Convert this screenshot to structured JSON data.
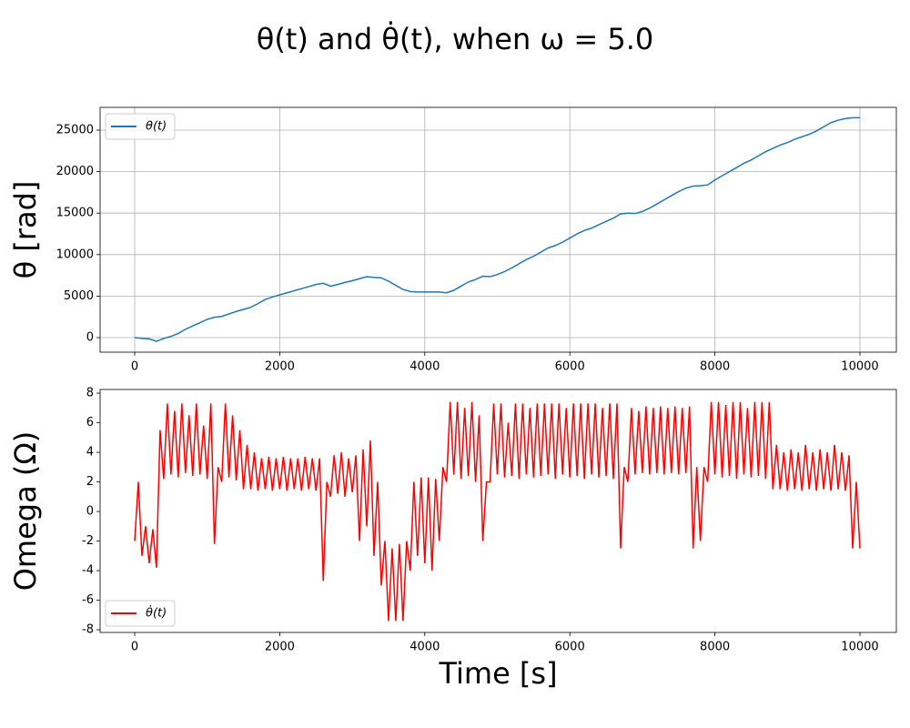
{
  "title": "θ(t) and θ̇(t), when ω = 5.0",
  "chart_data": [
    {
      "type": "line",
      "ylabel": "θ [rad]",
      "grid": true,
      "legend": "upper left",
      "xlim": [
        -477,
        10502
      ],
      "xticks": [
        0,
        2000,
        4000,
        6000,
        8000,
        10000
      ],
      "ylim": [
        -1754,
        27741
      ],
      "yticks": [
        0,
        5000,
        10000,
        15000,
        20000,
        25000
      ],
      "x": [
        0,
        100,
        200,
        300,
        400,
        500,
        600,
        700,
        800,
        900,
        1000,
        1100,
        1200,
        1300,
        1400,
        1500,
        1600,
        1700,
        1800,
        1900,
        2000,
        2100,
        2200,
        2300,
        2400,
        2500,
        2600,
        2700,
        2800,
        2900,
        3000,
        3100,
        3200,
        3300,
        3400,
        3500,
        3600,
        3700,
        3800,
        3900,
        4000,
        4100,
        4200,
        4300,
        4400,
        4500,
        4600,
        4700,
        4800,
        4900,
        5000,
        5100,
        5200,
        5300,
        5400,
        5500,
        5600,
        5700,
        5800,
        5900,
        6000,
        6100,
        6200,
        6300,
        6400,
        6500,
        6600,
        6700,
        6800,
        6900,
        7000,
        7100,
        7200,
        7300,
        7400,
        7500,
        7600,
        7700,
        7800,
        7900,
        8000,
        8100,
        8200,
        8300,
        8400,
        8500,
        8600,
        8700,
        8800,
        8900,
        9000,
        9100,
        9200,
        9300,
        9400,
        9500,
        9600,
        9700,
        9800,
        9900,
        10000
      ],
      "series": [
        {
          "name": "θ(t)",
          "color": "#1f77b4",
          "values": [
            0,
            -100,
            -150,
            -450,
            -100,
            150,
            500,
            1000,
            1400,
            1800,
            2200,
            2450,
            2550,
            2850,
            3150,
            3400,
            3650,
            4100,
            4600,
            4900,
            5150,
            5400,
            5650,
            5900,
            6150,
            6400,
            6550,
            6200,
            6400,
            6650,
            6850,
            7100,
            7350,
            7250,
            7200,
            6800,
            6300,
            5800,
            5550,
            5500,
            5500,
            5500,
            5500,
            5400,
            5700,
            6200,
            6700,
            7000,
            7400,
            7350,
            7600,
            7950,
            8400,
            8900,
            9400,
            9800,
            10300,
            10800,
            11100,
            11500,
            12000,
            12500,
            12900,
            13200,
            13600,
            14000,
            14400,
            14900,
            15000,
            14950,
            15200,
            15600,
            16100,
            16600,
            17100,
            17600,
            18000,
            18250,
            18300,
            18400,
            19000,
            19500,
            20000,
            20500,
            21000,
            21400,
            21900,
            22400,
            22800,
            23200,
            23500,
            23900,
            24200,
            24500,
            24900,
            25400,
            25900,
            26200,
            26400,
            26500,
            26500
          ]
        }
      ]
    },
    {
      "type": "line",
      "ylabel": "Omega (Ω)",
      "xlabel": "Time [s]",
      "grid": false,
      "legend": "lower left",
      "xlim": [
        -477,
        10502
      ],
      "xticks": [
        0,
        2000,
        4000,
        6000,
        8000,
        10000
      ],
      "ylim": [
        -8.18,
        8.25
      ],
      "yticks": [
        -8,
        -6,
        -4,
        -2,
        0,
        2,
        4,
        6,
        8
      ],
      "x": [
        0,
        50,
        100,
        150,
        200,
        250,
        300,
        350,
        400,
        450,
        500,
        550,
        600,
        650,
        700,
        750,
        800,
        850,
        900,
        950,
        1000,
        1050,
        1100,
        1150,
        1200,
        1250,
        1300,
        1350,
        1400,
        1450,
        1500,
        1550,
        1600,
        1650,
        1700,
        1750,
        1800,
        1850,
        1900,
        1950,
        2000,
        2050,
        2100,
        2150,
        2200,
        2250,
        2300,
        2350,
        2400,
        2450,
        2500,
        2550,
        2600,
        2650,
        2700,
        2750,
        2800,
        2850,
        2900,
        2950,
        3000,
        3050,
        3100,
        3150,
        3200,
        3250,
        3300,
        3350,
        3400,
        3450,
        3500,
        3550,
        3600,
        3650,
        3700,
        3750,
        3800,
        3850,
        3900,
        3950,
        4000,
        4050,
        4100,
        4150,
        4200,
        4250,
        4300,
        4350,
        4400,
        4450,
        4500,
        4550,
        4600,
        4650,
        4700,
        4750,
        4800,
        4850,
        4900,
        4950,
        5000,
        5050,
        5100,
        5150,
        5200,
        5250,
        5300,
        5350,
        5400,
        5450,
        5500,
        5550,
        5600,
        5650,
        5700,
        5750,
        5800,
        5850,
        5900,
        5950,
        6000,
        6050,
        6100,
        6150,
        6200,
        6250,
        6300,
        6350,
        6400,
        6450,
        6500,
        6550,
        6600,
        6650,
        6700,
        6750,
        6800,
        6850,
        6900,
        6950,
        7000,
        7050,
        7100,
        7150,
        7200,
        7250,
        7300,
        7350,
        7400,
        7450,
        7500,
        7550,
        7600,
        7650,
        7700,
        7750,
        7800,
        7850,
        7900,
        7950,
        8000,
        8050,
        8100,
        8150,
        8200,
        8250,
        8300,
        8350,
        8400,
        8450,
        8500,
        8550,
        8600,
        8650,
        8700,
        8750,
        8800,
        8850,
        8900,
        8950,
        9000,
        9050,
        9100,
        9150,
        9200,
        9250,
        9300,
        9350,
        9400,
        9450,
        9500,
        9550,
        9600,
        9650,
        9700,
        9750,
        9800,
        9850,
        9900,
        9950,
        10000
      ],
      "series": [
        {
          "name": "θ̇(t)",
          "color": "#ff0000",
          "values": [
            -2,
            2,
            -3,
            -1,
            -3.5,
            -1.2,
            -3.8,
            5.5,
            2.2,
            7.3,
            2.5,
            6.8,
            2.3,
            7.3,
            2.6,
            6.5,
            2.4,
            7.3,
            2.5,
            5.8,
            2.2,
            7.3,
            -2.2,
            3,
            2,
            7.3,
            2.3,
            6.5,
            2.1,
            5.5,
            1.5,
            4.5,
            1.5,
            4,
            1.4,
            3.6,
            1.5,
            3.7,
            1.4,
            3.6,
            1.5,
            3.7,
            1.4,
            3.6,
            1.5,
            3.6,
            1.4,
            3.7,
            1.5,
            3.6,
            1.4,
            3.6,
            -4.7,
            2,
            1,
            3.8,
            1.2,
            4,
            1,
            3.6,
            1.3,
            3.8,
            -2,
            4.2,
            -1,
            4.8,
            -3,
            2,
            -5,
            -2,
            -7.4,
            -2.5,
            -7.4,
            -2.2,
            -7.4,
            -2,
            -4,
            2,
            -3,
            2.3,
            -3.5,
            2.3,
            -4,
            2.2,
            -2,
            3,
            2,
            7.4,
            2.5,
            7.4,
            2.2,
            7,
            2.4,
            7.4,
            2,
            6.5,
            -2,
            2,
            2,
            7.3,
            2.5,
            7.3,
            2.3,
            6,
            2.4,
            7.3,
            2.2,
            7.3,
            2.5,
            7,
            2.3,
            7.3,
            2.4,
            7.3,
            2.5,
            7.3,
            2.2,
            7.3,
            2.5,
            7,
            2.3,
            7.3,
            2.4,
            7.3,
            2.2,
            7.3,
            2.5,
            7.3,
            2.3,
            7,
            2.4,
            7.3,
            2.2,
            7.3,
            -2.5,
            3,
            2,
            7,
            2.5,
            6.8,
            2.6,
            7.1,
            2.5,
            7,
            2.6,
            7.1,
            2.5,
            7,
            2.6,
            7.1,
            2.5,
            7,
            2.6,
            7.1,
            -2.5,
            3,
            -2,
            3,
            2,
            7.4,
            2.5,
            7.4,
            2.3,
            7.2,
            2.4,
            7.4,
            2.2,
            7.4,
            2.5,
            7,
            2.3,
            7.4,
            2.4,
            7.4,
            2.2,
            7.4,
            1.5,
            4.5,
            1.5,
            4,
            1.4,
            4.2,
            1.5,
            4,
            1.4,
            4.5,
            1.5,
            4,
            1.4,
            4.2,
            1.5,
            4,
            1.4,
            4.5,
            1.5,
            4,
            1.4,
            3.8,
            -2.5,
            2,
            -2.5
          ]
        }
      ]
    }
  ]
}
